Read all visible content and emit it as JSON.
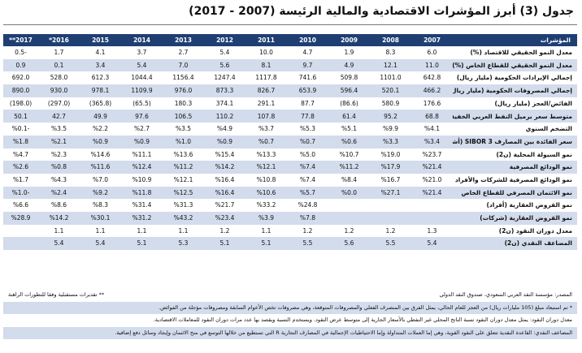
{
  "title": "جدول (3) أبرز المؤشرات الاقتصادية والمالية الرئيسة (2007 - 2017)",
  "table": {
    "headers": [
      "المؤشرات",
      "2007",
      "2008",
      "2009",
      "2010",
      "2011",
      "2012",
      "2013",
      "2014",
      "2015",
      "*2016",
      "**2017"
    ],
    "rows": [
      {
        "label": "معدل النمو الحقيقي للاقتصاد (%)",
        "values": [
          "6.0",
          "8.3",
          "1.9",
          "4.7",
          "10.0",
          "5.4",
          "2.7",
          "3.7",
          "4.1",
          "1.7",
          "0.5-"
        ]
      },
      {
        "label": "معدل النمو الحقيقي للقطاع الخاص (%)",
        "values": [
          "11.0",
          "12.1",
          "4.9",
          "9.7",
          "8.1",
          "5.6",
          "7.0",
          "5.4",
          "3.4",
          "0.1",
          "0.9"
        ]
      },
      {
        "label": "إجمالي الإيرادات الحكومية (مليار ريال)",
        "values": [
          "642.8",
          "1101.0",
          "509.8",
          "741.6",
          "1117.8",
          "1247.4",
          "1156.4",
          "1044.4",
          "612.3",
          "528.0",
          "692.0"
        ]
      },
      {
        "label": "إجمالي المصروفات الحكومية (مليار ريال)",
        "values": [
          "466.2",
          "520.1",
          "596.4",
          "653.9",
          "826.7",
          "873.3",
          "976.0",
          "1109.9",
          "978.1",
          "930.0",
          "890.0"
        ]
      },
      {
        "label": "الفائض/العجز (مليار ريال)",
        "values": [
          "176.6",
          "580.9",
          "(86.6)",
          "87.7",
          "291.1",
          "374.1",
          "180.3",
          "(65.5)",
          "(365.8)",
          "(297.0)",
          "(198.0)"
        ]
      },
      {
        "label": "متوسط سعر برميل النفط العربي الخفيف $",
        "values": [
          "68.8",
          "95.2",
          "61.4",
          "77.8",
          "107.8",
          "110.2",
          "106.5",
          "97.6",
          "49.9",
          "42.7",
          "50.1"
        ]
      },
      {
        "label": "التضخم السنوي",
        "values": [
          "%4.1",
          "%9.9",
          "%5.1",
          "%5.3",
          "%3.7",
          "%4.9",
          "%3.5",
          "%2.7",
          "%2.2",
          "%3.5",
          "%0.1-"
        ]
      },
      {
        "label": "سعر الفائدة بين المصارف 3 SIBOR (أشهر)",
        "values": [
          "%3.4",
          "%3.3",
          "%0.6",
          "%0.7",
          "%0.7",
          "%0.9",
          "%1.0",
          "%0.9",
          "%0.9",
          "%2.1",
          "%1.8"
        ]
      },
      {
        "label": "نمو السيولة المحلية (ن2)",
        "values": [
          "%23.7",
          "%19.0",
          "%10.7",
          "%5.0",
          "%13.3",
          "%15.4",
          "%13.6",
          "%11.1",
          "%14.6",
          "%2.3",
          "%4.7"
        ]
      },
      {
        "label": "نمو الودائع المصرفية",
        "values": [
          "%21.4",
          "%17.9",
          "%11.2",
          "%7.4",
          "%12.1",
          "%14.2",
          "%11.2",
          "%12.4",
          "%11.6",
          "%0.8",
          "%2.6"
        ]
      },
      {
        "label": "نمو الودائع المصرفية للشركات والأفراد",
        "values": [
          "%21.0",
          "%16.7",
          "%8.4",
          "%7.4",
          "%10.8",
          "%16.4",
          "%12.1",
          "%10.9",
          "%7.0",
          "%4.3",
          "%1.7"
        ]
      },
      {
        "label": "نمو الائتمان المصرفي للقطاع الخاص",
        "values": [
          "%21.4",
          "%27.1",
          "%0.0",
          "%5.7",
          "%10.6",
          "%16.4",
          "%12.5",
          "%11.8",
          "%9.2",
          "%2.4",
          "%1.0-"
        ]
      },
      {
        "label": "نمو القروض العقارية (أفراد)",
        "values": [
          "",
          "",
          "",
          "%24.8",
          "%33.2",
          "%21.7",
          "%31.3",
          "%31.4",
          "%8.3",
          "%8.6",
          "%6.6"
        ]
      },
      {
        "label": "نمو القروض العقارية (شركات)",
        "values": [
          "",
          "",
          "",
          "%7.8",
          "%3.9",
          "%23.4",
          "%43.2",
          "%31.2",
          "%30.1",
          "%14.2",
          "%28.9"
        ]
      },
      {
        "label": "معدل دوران النقود (ن2)",
        "values": [
          "1.3",
          "1.2",
          "1.2",
          "1.2",
          "1.1",
          "1.2",
          "1.1",
          "1.1",
          "1.1",
          "1.1",
          ""
        ]
      },
      {
        "label": "المضاعف النقدي (ن2)",
        "values": [
          "5.4",
          "5.5",
          "5.6",
          "5.5",
          "5.1",
          "5.1",
          "5.3",
          "5.1",
          "5.4",
          "5.4",
          ""
        ]
      }
    ]
  },
  "notes": {
    "source": "المصدر: مؤسسة النقد العربي السعودي، صندوق النقد الدولي",
    "legend_double_star": "** تقديرات مستقبلية وفقا للتطورات الراهنة",
    "note_star": "* تم استبعاد مبلغ (105 مليارات ريال) من العجز للعام الحالي، يمثل الفرق بين المنصرف الفعلي والمصروفات المتوقعة، وهي مصروفات تخص الأعوام السابقة ومصروفات مؤجلة من الفوائض.",
    "note_velocity": "معدل دوران النقود: يمثل معدل دوران النقود نسبة الناتج المحلي غير النفطي بالأسعار الجارية إلى متوسط عرض النقود. ويستخدم النسبة ويقصد بها عدد مرات دوران النقود للمعاملات الاقتصادية.",
    "note_multiplier": "المضاعف النقدي: القاعدة النقدية تتعلق على النقود القوية، وهي إما العملات المتداولة وإما الاحتياطيات الإجمالية في المصارف التجارية R التي تستطيع من خلالها التوسع في منح الائتمان وإيجاد وسائل دفع إضافية."
  }
}
